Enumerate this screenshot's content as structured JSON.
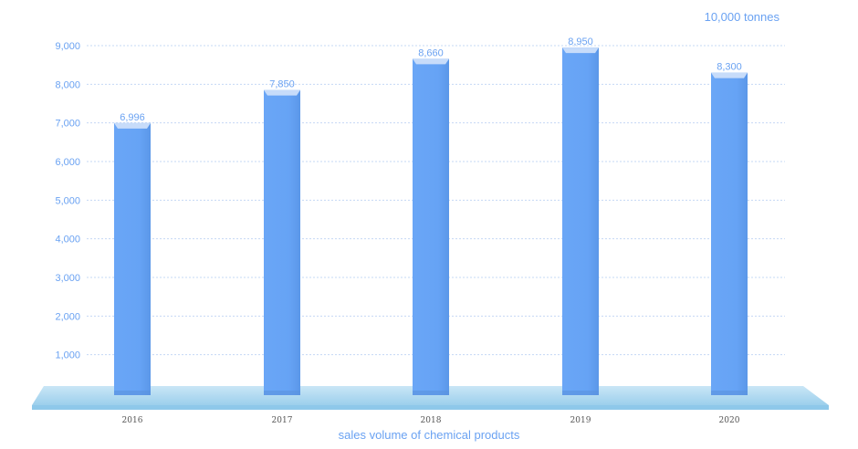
{
  "chart_data": {
    "type": "bar",
    "categories": [
      "2016",
      "2017",
      "2018",
      "2019",
      "2020"
    ],
    "values": [
      6996,
      7850,
      8660,
      8950,
      8300
    ],
    "value_labels": [
      "6,996",
      "7,850",
      "8,660",
      "8,950",
      "8,300"
    ],
    "unit": "10,000 tonnes",
    "xlabel": "sales volume of chemical products",
    "ylabel": "",
    "ylim": [
      0,
      9000
    ],
    "yticks": [
      1000,
      2000,
      3000,
      4000,
      5000,
      6000,
      7000,
      8000,
      9000
    ],
    "ytick_labels": [
      "1,000",
      "2,000",
      "3,000",
      "4,000",
      "5,000",
      "6,000",
      "7,000",
      "8,000",
      "9,000"
    ],
    "grid": true,
    "colors": {
      "bar": "#66a3f5",
      "bar_top": "#c7dcfa",
      "text": "#6aa2f2",
      "grid": "#c5d8f5",
      "platform": "#a9d6ee",
      "platform_edge": "#7ec0e6"
    }
  }
}
